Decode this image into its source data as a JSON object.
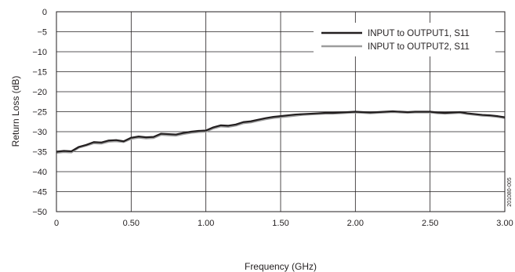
{
  "chart_data": {
    "type": "line",
    "title": "",
    "xlabel": "Frequency (GHz)",
    "ylabel": "Return Loss (dB)",
    "xlim": [
      0,
      3
    ],
    "ylim": [
      -50,
      0
    ],
    "grid": true,
    "legend_position": "top-right",
    "x_ticks": [
      0,
      0.5,
      1,
      1.5,
      2,
      2.5,
      3
    ],
    "x_tick_labels": [
      "0",
      "0.50",
      "1.00",
      "1.50",
      "2.00",
      "2.50",
      "3.00"
    ],
    "y_ticks": [
      0,
      -5,
      -10,
      -15,
      -20,
      -25,
      -30,
      -35,
      -40,
      -45,
      -50
    ],
    "y_tick_labels": [
      "0",
      "−5",
      "−10",
      "−15",
      "−20",
      "−25",
      "−30",
      "−35",
      "−40",
      "−45",
      "−50"
    ],
    "x": [
      0,
      0.05,
      0.1,
      0.15,
      0.2,
      0.25,
      0.3,
      0.35,
      0.4,
      0.45,
      0.5,
      0.55,
      0.6,
      0.65,
      0.7,
      0.75,
      0.8,
      0.85,
      0.9,
      0.95,
      1.0,
      1.05,
      1.1,
      1.15,
      1.2,
      1.25,
      1.3,
      1.35,
      1.4,
      1.45,
      1.5,
      1.55,
      1.6,
      1.65,
      1.7,
      1.75,
      1.8,
      1.85,
      1.9,
      1.95,
      2.0,
      2.05,
      2.1,
      2.15,
      2.2,
      2.25,
      2.3,
      2.35,
      2.4,
      2.45,
      2.5,
      2.55,
      2.6,
      2.65,
      2.7,
      2.75,
      2.8,
      2.85,
      2.9,
      2.95,
      3.0
    ],
    "series": [
      {
        "name": "INPUT to OUTPUT1, S11",
        "color": "#231f20",
        "values": [
          -35.0,
          -34.8,
          -34.9,
          -33.8,
          -33.3,
          -32.6,
          -32.7,
          -32.2,
          -32.1,
          -32.4,
          -31.5,
          -31.2,
          -31.4,
          -31.3,
          -30.5,
          -30.6,
          -30.7,
          -30.3,
          -30.0,
          -29.8,
          -29.7,
          -28.9,
          -28.4,
          -28.5,
          -28.2,
          -27.6,
          -27.4,
          -27.0,
          -26.6,
          -26.3,
          -26.1,
          -25.9,
          -25.7,
          -25.6,
          -25.5,
          -25.4,
          -25.3,
          -25.3,
          -25.2,
          -25.1,
          -25.0,
          -25.1,
          -25.2,
          -25.1,
          -25.0,
          -24.9,
          -25.0,
          -25.1,
          -25.0,
          -25.0,
          -25.0,
          -25.2,
          -25.3,
          -25.2,
          -25.1,
          -25.4,
          -25.6,
          -25.8,
          -25.9,
          -26.1,
          -26.4
        ]
      },
      {
        "name": "INPUT to OUTPUT2, S11",
        "color": "#9d9d9d",
        "values": [
          -35.3,
          -35.1,
          -35.2,
          -34.0,
          -33.5,
          -32.9,
          -33.0,
          -32.5,
          -32.4,
          -32.6,
          -31.8,
          -31.5,
          -31.7,
          -31.6,
          -30.8,
          -30.9,
          -31.0,
          -30.6,
          -30.3,
          -30.1,
          -30.0,
          -29.2,
          -28.7,
          -28.8,
          -28.5,
          -27.9,
          -27.7,
          -27.3,
          -26.9,
          -26.6,
          -26.4,
          -26.2,
          -26.0,
          -25.8,
          -25.7,
          -25.6,
          -25.5,
          -25.5,
          -25.4,
          -25.3,
          -25.2,
          -25.3,
          -25.4,
          -25.3,
          -25.2,
          -25.1,
          -25.2,
          -25.3,
          -25.2,
          -25.2,
          -25.2,
          -25.4,
          -25.5,
          -25.4,
          -25.3,
          -25.6,
          -25.8,
          -26.0,
          -26.1,
          -26.3,
          -26.6
        ]
      }
    ],
    "watermark": "201080-005"
  }
}
